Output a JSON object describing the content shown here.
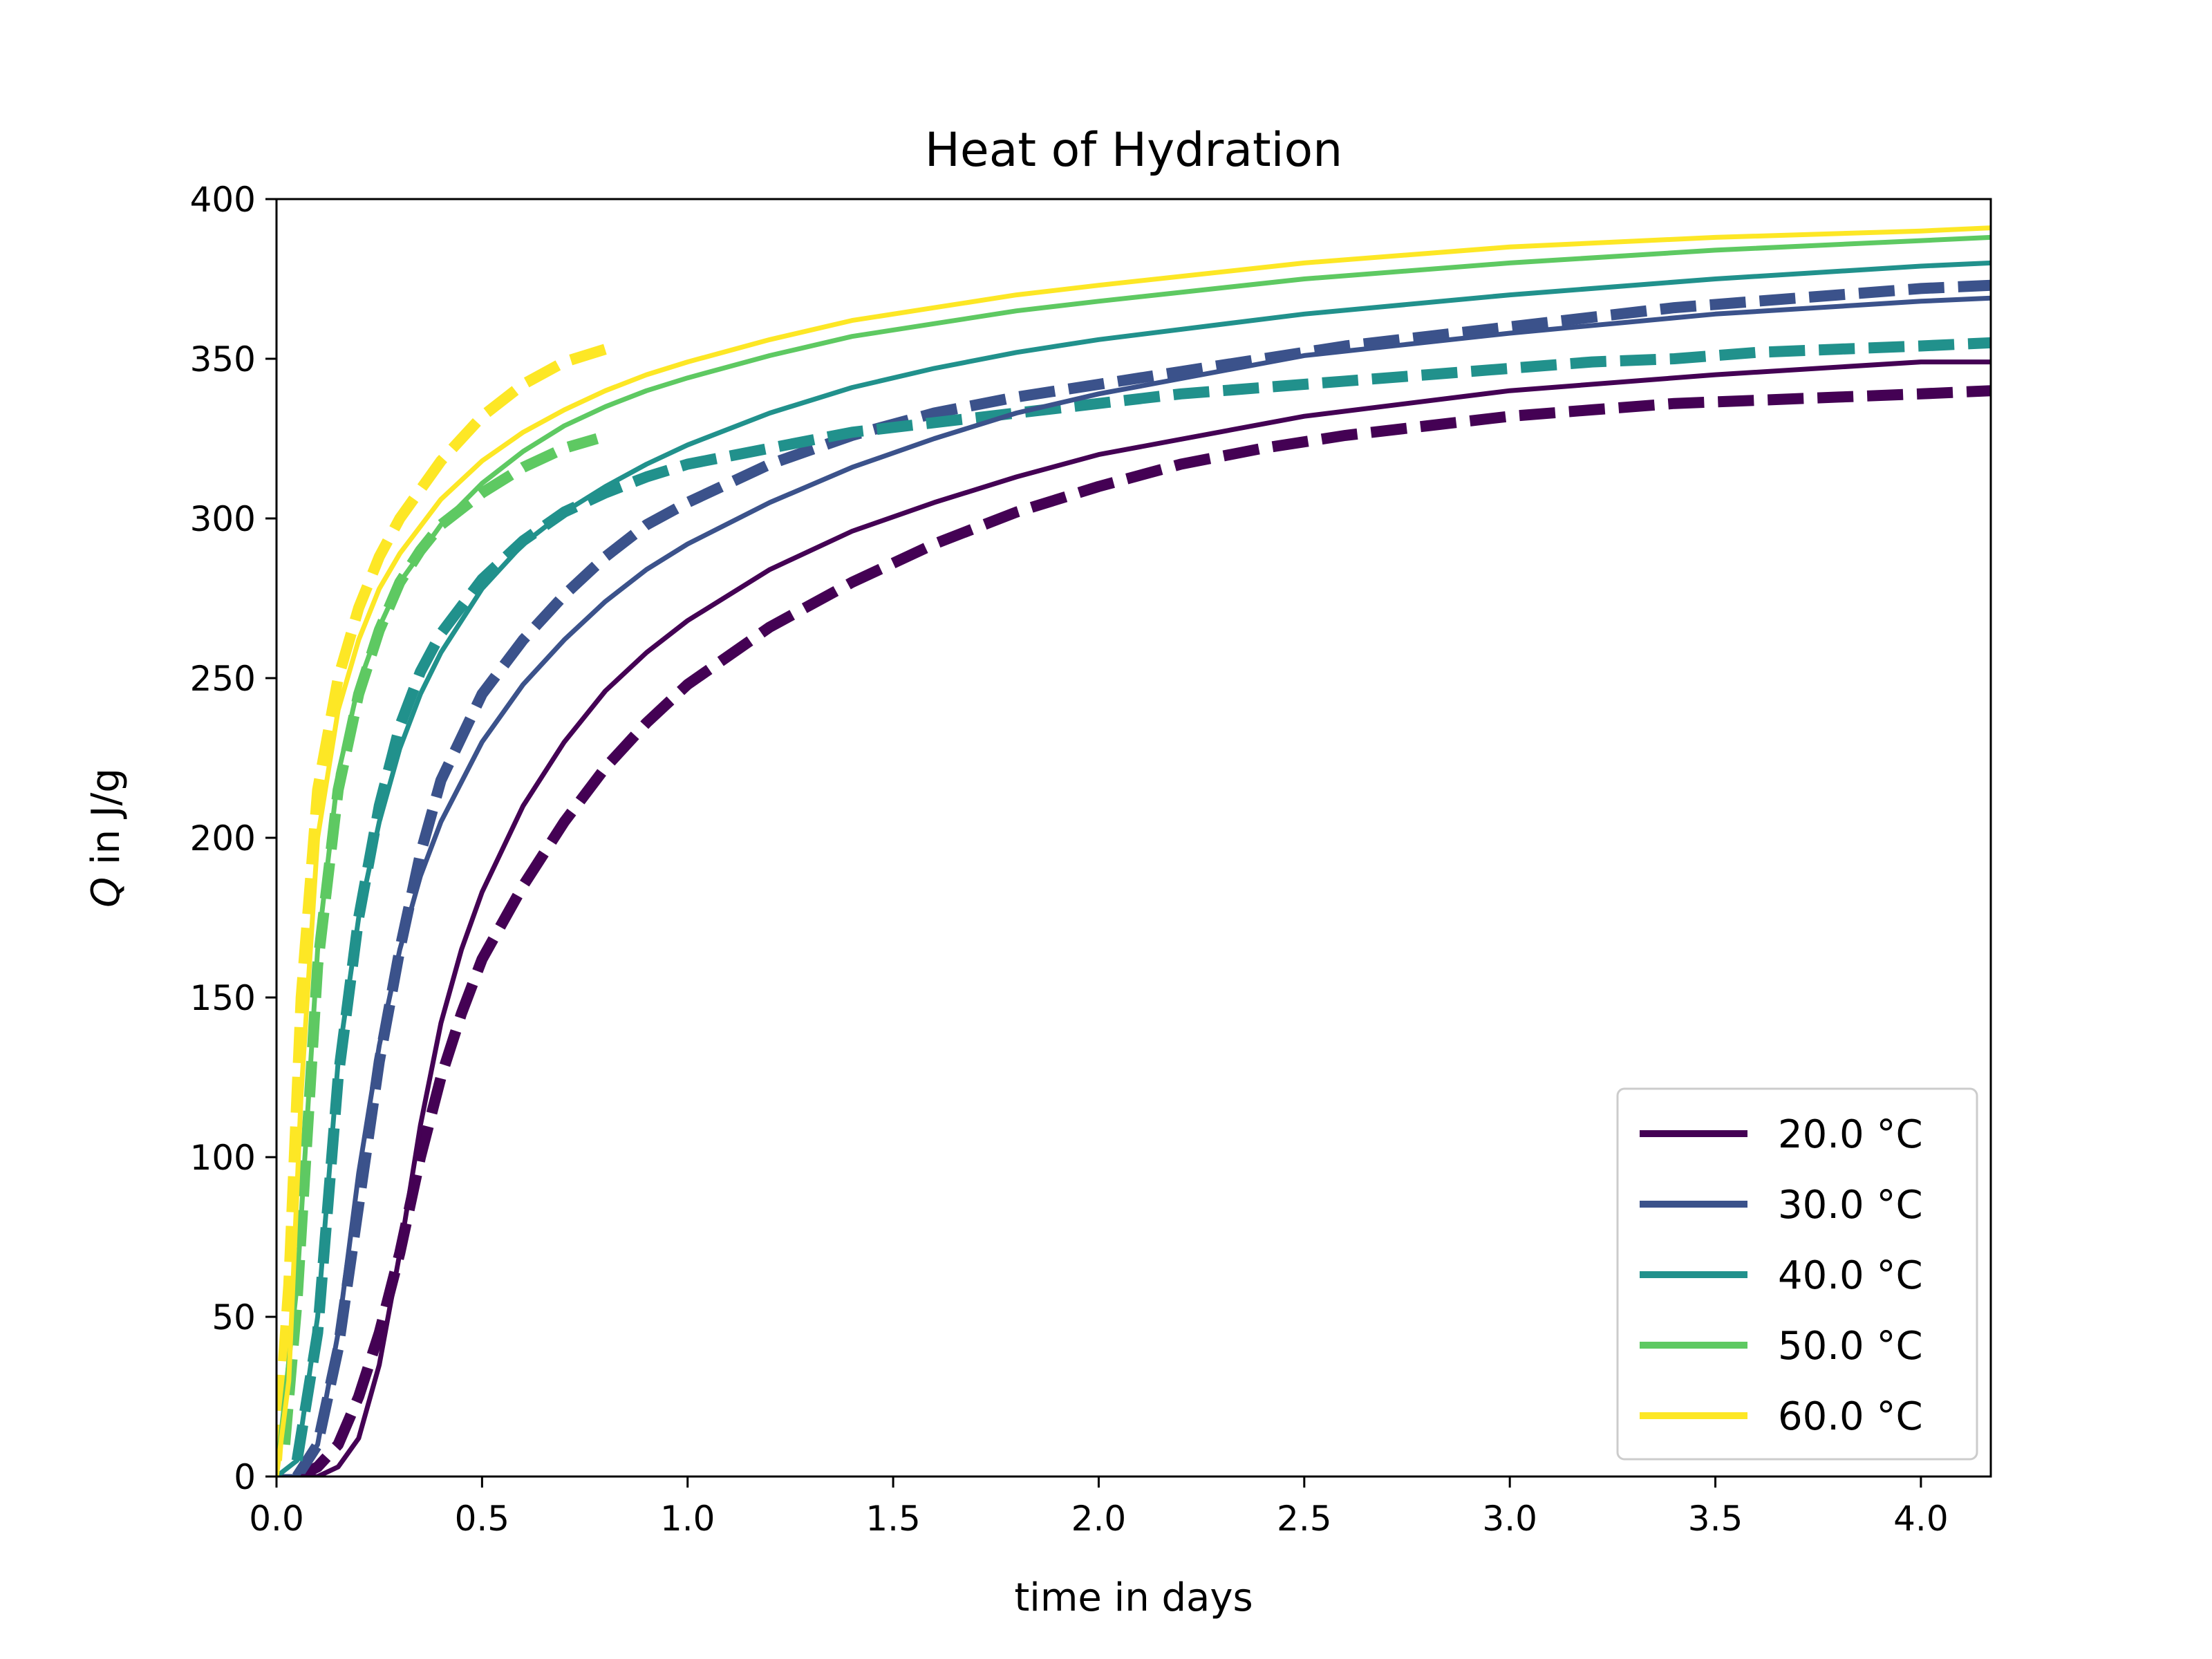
{
  "chart_data": {
    "type": "line",
    "title": "Heat of Hydration",
    "xlabel": "time in days",
    "ylabel": "Q in J/g",
    "ylabel_math_symbol": "Q",
    "ylabel_suffix": " in J/g",
    "xlim": [
      0,
      4.17
    ],
    "ylim": [
      0,
      400
    ],
    "xticks": [
      "0.0",
      "0.5",
      "1.0",
      "1.5",
      "2.0",
      "2.5",
      "3.0",
      "3.5",
      "4.0"
    ],
    "yticks": [
      "0",
      "50",
      "100",
      "150",
      "200",
      "250",
      "300",
      "350",
      "400"
    ],
    "grid": false,
    "legend_position": "lower-right",
    "series": [
      {
        "name": "20.0 °C",
        "color": "#440154",
        "model": {
          "x": [
            0,
            0.1,
            0.15,
            0.2,
            0.25,
            0.3,
            0.35,
            0.4,
            0.45,
            0.5,
            0.6,
            0.7,
            0.8,
            0.9,
            1.0,
            1.2,
            1.4,
            1.6,
            1.8,
            2.0,
            2.5,
            3.0,
            3.5,
            4.0,
            4.17
          ],
          "y": [
            0,
            0,
            3,
            12,
            35,
            70,
            110,
            142,
            165,
            183,
            210,
            230,
            246,
            258,
            268,
            284,
            296,
            305,
            313,
            320,
            332,
            340,
            345,
            349,
            349
          ]
        },
        "measured": {
          "x": [
            0.05,
            0.1,
            0.15,
            0.2,
            0.25,
            0.3,
            0.35,
            0.4,
            0.45,
            0.5,
            0.6,
            0.7,
            0.8,
            0.9,
            1.0,
            1.2,
            1.4,
            1.6,
            1.8,
            2.0,
            2.2,
            2.4,
            2.6,
            2.8,
            3.0,
            3.2,
            3.4,
            3.6,
            3.8,
            4.0,
            4.17
          ],
          "y": [
            0,
            3,
            10,
            25,
            45,
            70,
            100,
            125,
            145,
            162,
            185,
            205,
            222,
            236,
            248,
            266,
            280,
            292,
            302,
            310,
            317,
            322,
            326,
            329,
            332,
            334,
            336,
            337,
            338,
            339,
            340
          ]
        }
      },
      {
        "name": "30.0 °C",
        "color": "#3b528b",
        "model": {
          "x": [
            0,
            0.05,
            0.1,
            0.15,
            0.2,
            0.25,
            0.3,
            0.35,
            0.4,
            0.5,
            0.6,
            0.7,
            0.8,
            0.9,
            1.0,
            1.2,
            1.4,
            1.6,
            1.8,
            2.0,
            2.5,
            3.0,
            3.5,
            4.0,
            4.17
          ],
          "y": [
            0,
            0,
            10,
            45,
            95,
            135,
            165,
            188,
            205,
            230,
            248,
            262,
            274,
            284,
            292,
            305,
            316,
            325,
            333,
            339,
            351,
            358,
            364,
            368,
            369
          ]
        },
        "measured": {
          "x": [
            0.05,
            0.1,
            0.15,
            0.2,
            0.25,
            0.3,
            0.35,
            0.4,
            0.5,
            0.6,
            0.7,
            0.8,
            0.9,
            1.0,
            1.2,
            1.4,
            1.6,
            1.8,
            2.0,
            2.2,
            2.4,
            2.6,
            2.8,
            3.0,
            3.2,
            3.4,
            3.6,
            3.8,
            4.0,
            4.17
          ],
          "y": [
            0,
            10,
            40,
            85,
            130,
            165,
            195,
            218,
            245,
            262,
            276,
            288,
            298,
            305,
            317,
            326,
            333,
            338,
            342,
            346,
            350,
            354,
            357,
            360,
            363,
            366,
            368,
            370,
            372,
            373
          ]
        }
      },
      {
        "name": "40.0 °C",
        "color": "#21918c",
        "model": {
          "x": [
            0,
            0.05,
            0.1,
            0.15,
            0.2,
            0.25,
            0.3,
            0.35,
            0.4,
            0.5,
            0.6,
            0.7,
            0.8,
            0.9,
            1.0,
            1.2,
            1.4,
            1.6,
            1.8,
            2.0,
            2.5,
            3.0,
            3.5,
            4.0,
            4.17
          ],
          "y": [
            0,
            5,
            50,
            130,
            175,
            205,
            228,
            245,
            258,
            278,
            292,
            302,
            310,
            317,
            323,
            333,
            341,
            347,
            352,
            356,
            364,
            370,
            375,
            379,
            380
          ]
        },
        "measured": {
          "x": [
            0.05,
            0.1,
            0.15,
            0.2,
            0.25,
            0.3,
            0.35,
            0.4,
            0.5,
            0.6,
            0.7,
            0.8,
            0.9,
            1.0,
            1.2,
            1.4,
            1.6,
            1.8,
            2.0,
            2.2,
            2.4,
            2.6,
            2.8,
            3.0,
            3.2,
            3.4,
            3.6,
            3.8,
            4.0,
            4.17
          ],
          "y": [
            5,
            45,
            125,
            175,
            210,
            235,
            252,
            264,
            281,
            293,
            302,
            308,
            313,
            317,
            322,
            327,
            330,
            333,
            336,
            339,
            341,
            343,
            345,
            347,
            349,
            350,
            352,
            353,
            354,
            355
          ]
        }
      },
      {
        "name": "50.0 °C",
        "color": "#5ec962",
        "model": {
          "x": [
            0,
            0.05,
            0.1,
            0.15,
            0.2,
            0.25,
            0.3,
            0.4,
            0.5,
            0.6,
            0.7,
            0.8,
            0.9,
            1.0,
            1.2,
            1.4,
            1.6,
            1.8,
            2.0,
            2.5,
            3.0,
            3.5,
            4.0,
            4.17
          ],
          "y": [
            0,
            60,
            165,
            220,
            248,
            266,
            280,
            298,
            311,
            321,
            329,
            335,
            340,
            344,
            351,
            357,
            361,
            365,
            368,
            375,
            380,
            384,
            387,
            388
          ]
        },
        "measured": {
          "x": [
            0.02,
            0.05,
            0.1,
            0.15,
            0.2,
            0.25,
            0.3,
            0.35,
            0.4,
            0.5,
            0.6,
            0.7,
            0.78
          ],
          "y": [
            10,
            55,
            160,
            215,
            245,
            265,
            280,
            290,
            298,
            308,
            316,
            322,
            325
          ]
        }
      },
      {
        "name": "60.0 °C",
        "color": "#fde725",
        "model": {
          "x": [
            0,
            0.03,
            0.06,
            0.1,
            0.15,
            0.2,
            0.25,
            0.3,
            0.4,
            0.5,
            0.6,
            0.7,
            0.8,
            0.9,
            1.0,
            1.2,
            1.4,
            1.6,
            1.8,
            2.0,
            2.5,
            3.0,
            3.5,
            4.0,
            4.17
          ],
          "y": [
            0,
            30,
            120,
            200,
            240,
            262,
            278,
            289,
            306,
            318,
            327,
            334,
            340,
            345,
            349,
            356,
            362,
            366,
            370,
            373,
            380,
            385,
            388,
            390,
            391
          ]
        },
        "measured": {
          "x": [
            0.0,
            0.03,
            0.06,
            0.1,
            0.15,
            0.2,
            0.25,
            0.3,
            0.4,
            0.5,
            0.6,
            0.7,
            0.8
          ],
          "y": [
            5,
            60,
            150,
            215,
            250,
            272,
            288,
            300,
            318,
            332,
            342,
            349,
            353
          ]
        }
      }
    ]
  }
}
